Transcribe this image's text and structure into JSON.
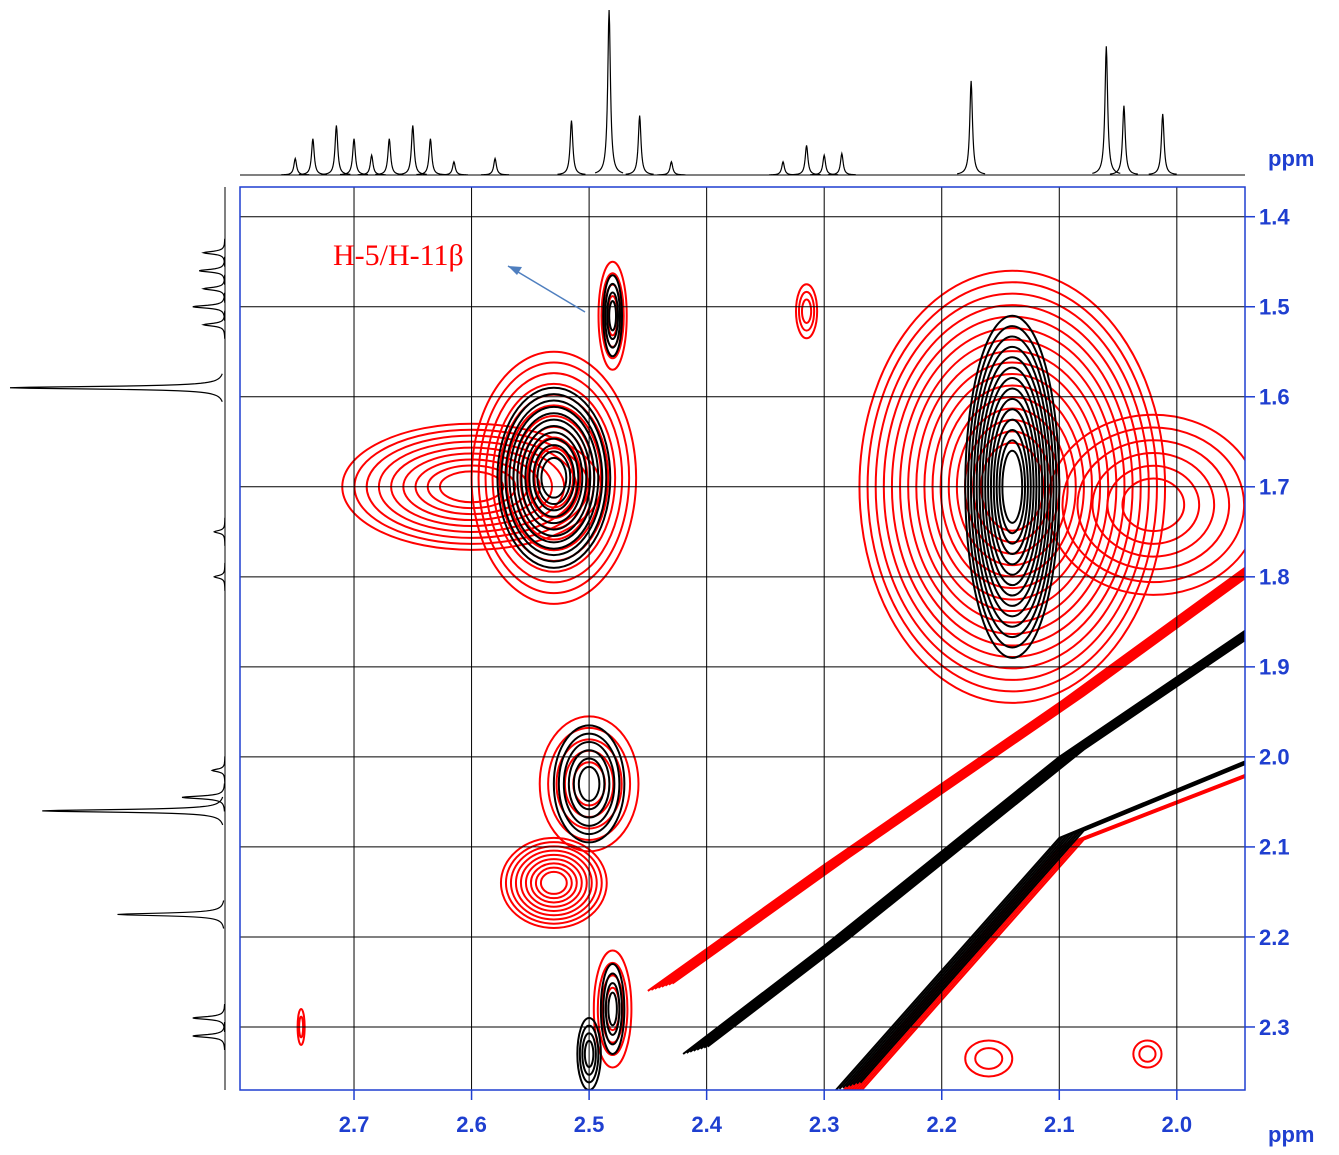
{
  "chart_data": {
    "type": "contour",
    "x_label": "ppm",
    "y_label": "ppm",
    "annotation": "H-5/H-11β",
    "xlim": [
      2.797,
      1.942
    ],
    "ylim": [
      1.367,
      2.37
    ],
    "xticks": [
      2.7,
      2.6,
      2.5,
      2.4,
      2.3,
      2.2,
      2.1,
      {
        "value": 2,
        "label": "2.0"
      }
    ],
    "yticks": [
      1.4,
      1.5,
      1.6,
      1.7,
      1.8,
      1.9,
      {
        "value": 2,
        "label": "2.0"
      },
      2.1,
      2.2,
      2.3
    ],
    "grid": true,
    "peaks": [
      {
        "x": 2.6,
        "y": 1.7,
        "dx": 0.11,
        "dy": 0.07,
        "levels": 9,
        "color": "#ff0000"
      },
      {
        "x": 2.53,
        "y": 1.69,
        "dx": 0.07,
        "dy": 0.14,
        "levels": 10,
        "color": "#ff0000"
      },
      {
        "x": 2.53,
        "y": 1.69,
        "dx": 0.048,
        "dy": 0.1,
        "levels": 12,
        "color": "#000000"
      },
      {
        "x": 2.48,
        "y": 1.51,
        "dx": 0.012,
        "dy": 0.06,
        "levels": 4,
        "color": "#ff0000"
      },
      {
        "x": 2.48,
        "y": 1.51,
        "dx": 0.008,
        "dy": 0.045,
        "levels": 4,
        "color": "#000000"
      },
      {
        "x": 2.315,
        "y": 1.505,
        "dx": 0.009,
        "dy": 0.03,
        "levels": 3,
        "color": "#ff0000"
      },
      {
        "x": 2.14,
        "y": 1.7,
        "dx": 0.13,
        "dy": 0.24,
        "levels": 16,
        "color": "#ff0000"
      },
      {
        "x": 2.02,
        "y": 1.72,
        "dx": 0.09,
        "dy": 0.1,
        "levels": 6,
        "color": "#ff0000"
      },
      {
        "x": 2.14,
        "y": 1.7,
        "dx": 0.04,
        "dy": 0.19,
        "levels": 14,
        "color": "#000000"
      },
      {
        "x": 2.5,
        "y": 2.03,
        "dx": 0.042,
        "dy": 0.075,
        "levels": 5,
        "color": "#ff0000"
      },
      {
        "x": 2.5,
        "y": 2.03,
        "dx": 0.03,
        "dy": 0.065,
        "levels": 6,
        "color": "#000000"
      },
      {
        "x": 2.53,
        "y": 2.14,
        "dx": 0.045,
        "dy": 0.05,
        "levels": 9,
        "color": "#ff0000"
      },
      {
        "x": 2.745,
        "y": 2.3,
        "dx": 0.003,
        "dy": 0.02,
        "levels": 2,
        "color": "#ff0000"
      },
      {
        "x": 2.48,
        "y": 2.28,
        "dx": 0.016,
        "dy": 0.065,
        "levels": 4,
        "color": "#ff0000"
      },
      {
        "x": 2.48,
        "y": 2.28,
        "dx": 0.01,
        "dy": 0.05,
        "levels": 4,
        "color": "#000000"
      },
      {
        "x": 2.5,
        "y": 2.33,
        "dx": 0.01,
        "dy": 0.04,
        "levels": 4,
        "color": "#000000"
      },
      {
        "x": 2.16,
        "y": 2.335,
        "dx": 0.02,
        "dy": 0.02,
        "levels": 2,
        "color": "#ff0000"
      },
      {
        "x": 2.025,
        "y": 2.33,
        "dx": 0.012,
        "dy": 0.015,
        "levels": 2,
        "color": "#ff0000"
      }
    ],
    "ridges": [
      {
        "x": [
          2.45,
          2.3,
          2.1,
          1.942
        ],
        "y": [
          2.26,
          2.12,
          1.94,
          1.79
        ],
        "color": "#ff0000"
      },
      {
        "x": [
          2.42,
          2.3,
          2.1,
          1.942
        ],
        "y": [
          2.33,
          2.21,
          2.0,
          1.86
        ],
        "color": "#000000"
      },
      {
        "x": [
          2.29,
          2.1,
          1.942
        ],
        "y": [
          2.38,
          2.1,
          2.02
        ],
        "color": "#ff0000"
      },
      {
        "x": [
          2.29,
          2.1,
          1.942
        ],
        "y": [
          2.37,
          2.09,
          2.005
        ],
        "color": "#000000"
      }
    ],
    "x_projection": {
      "ppm": [
        2.75,
        2.735,
        2.715,
        2.7,
        2.685,
        2.67,
        2.65,
        2.635,
        2.615,
        2.58,
        2.515,
        2.483,
        2.457,
        2.43,
        2.335,
        2.315,
        2.3,
        2.285,
        2.175,
        2.06,
        2.045,
        2.012
      ],
      "heights": [
        0.1,
        0.22,
        0.3,
        0.22,
        0.12,
        0.22,
        0.3,
        0.22,
        0.08,
        0.1,
        0.33,
        1.0,
        0.36,
        0.08,
        0.08,
        0.18,
        0.12,
        0.13,
        0.57,
        0.78,
        0.42,
        0.37
      ]
    },
    "y_projection": {
      "ppm": [
        1.44,
        1.46,
        1.48,
        1.5,
        1.52,
        1.59,
        1.75,
        1.8,
        2.015,
        2.045,
        2.06,
        2.175,
        2.29,
        2.31
      ],
      "heights": [
        0.1,
        0.12,
        0.1,
        0.15,
        0.1,
        1.0,
        0.05,
        0.05,
        0.06,
        0.2,
        0.85,
        0.5,
        0.15,
        0.15
      ]
    }
  }
}
